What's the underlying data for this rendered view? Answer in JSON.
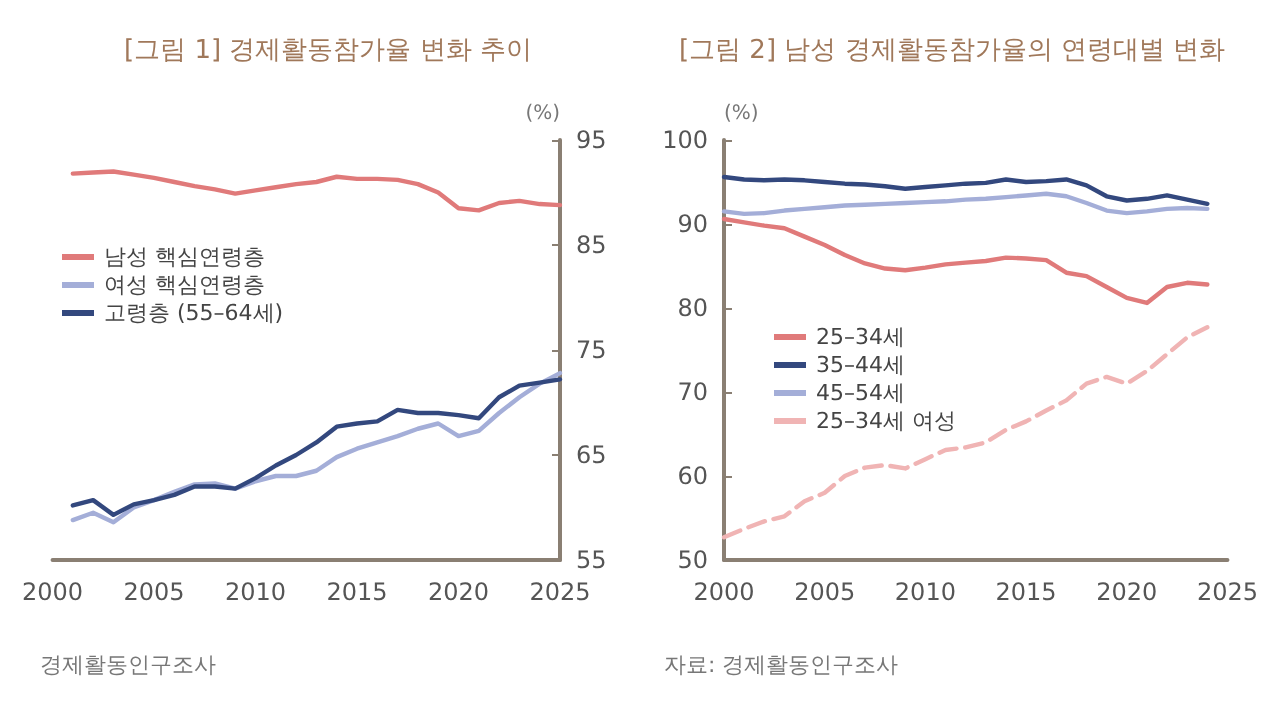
{
  "chart_data": [
    {
      "type": "line",
      "title": "[그림 1] 경제활동참가율 변화 추이",
      "y2label": "(%)",
      "annotations": [
        "경제활동인구조사"
      ],
      "x": [
        2001,
        2002,
        2003,
        2004,
        2005,
        2006,
        2007,
        2008,
        2009,
        2010,
        2011,
        2012,
        2013,
        2014,
        2015,
        2016,
        2017,
        2018,
        2019,
        2020,
        2021,
        2022,
        2023,
        2024,
        2025
      ],
      "series": [
        {
          "name": "남성 핵심연령층",
          "color": "#e07a7a",
          "axis": "y2",
          "values": [
            91.8,
            91.9,
            92.0,
            91.7,
            91.4,
            91.0,
            90.6,
            90.3,
            89.9,
            90.2,
            90.5,
            90.8,
            91.0,
            91.5,
            91.3,
            91.3,
            91.2,
            90.8,
            90.0,
            88.5,
            88.3,
            89.0,
            89.2,
            88.9,
            88.8
          ]
        },
        {
          "name": "여성 핵심연령층",
          "color": "#a4aed8",
          "axis": "y2",
          "values": [
            58.8,
            59.5,
            58.6,
            60.0,
            60.7,
            61.5,
            62.2,
            62.3,
            61.8,
            62.5,
            63.0,
            63.0,
            63.5,
            64.8,
            65.6,
            66.2,
            66.8,
            67.5,
            68.0,
            66.8,
            67.3,
            69.0,
            70.5,
            71.8,
            72.8
          ]
        },
        {
          "name": "고령층 (55–64세)",
          "color": "#33487e",
          "axis": "y2",
          "values": [
            60.2,
            60.7,
            59.3,
            60.3,
            60.7,
            61.2,
            62.0,
            62.0,
            61.8,
            62.8,
            64.0,
            65.0,
            66.2,
            67.7,
            68.0,
            68.2,
            69.3,
            69.0,
            69.0,
            68.8,
            68.5,
            70.5,
            71.6,
            71.9,
            72.2
          ]
        }
      ],
      "xlim": [
        2000,
        2025
      ],
      "xticks": [
        2000,
        2005,
        2010,
        2015,
        2020,
        2025
      ],
      "y2lim": [
        55,
        95
      ],
      "y2ticks": [
        55,
        65,
        75,
        85,
        95
      ],
      "legend": "left",
      "marker": "none",
      "grid": false
    },
    {
      "type": "line",
      "title": "[그림 2] 남성 경제활동참가율의 연령대별 변화",
      "ylabel": "(%)",
      "annotations": [
        "자료: 경제활동인구조사"
      ],
      "x": [
        2000,
        2001,
        2002,
        2003,
        2004,
        2005,
        2006,
        2007,
        2008,
        2009,
        2010,
        2011,
        2012,
        2013,
        2014,
        2015,
        2016,
        2017,
        2018,
        2019,
        2020,
        2021,
        2022,
        2023,
        2024
      ],
      "series": [
        {
          "name": "25–34세",
          "color": "#e07a7a",
          "values": [
            90.6,
            90.2,
            89.8,
            89.5,
            88.5,
            87.5,
            86.3,
            85.3,
            84.7,
            84.5,
            84.8,
            85.2,
            85.4,
            85.6,
            86.0,
            85.9,
            85.7,
            84.2,
            83.8,
            82.5,
            81.2,
            80.6,
            82.5,
            83.0,
            82.8
          ]
        },
        {
          "name": "35–44세",
          "color": "#33487e",
          "values": [
            95.6,
            95.3,
            95.2,
            95.3,
            95.2,
            95.0,
            94.8,
            94.7,
            94.5,
            94.2,
            94.4,
            94.6,
            94.8,
            94.9,
            95.3,
            95.0,
            95.1,
            95.3,
            94.6,
            93.3,
            92.8,
            93.0,
            93.4,
            92.9,
            92.4
          ]
        },
        {
          "name": "45–54세",
          "color": "#a4aed8",
          "values": [
            91.5,
            91.2,
            91.3,
            91.6,
            91.8,
            92.0,
            92.2,
            92.3,
            92.4,
            92.5,
            92.6,
            92.7,
            92.9,
            93.0,
            93.2,
            93.4,
            93.6,
            93.3,
            92.5,
            91.6,
            91.3,
            91.5,
            91.8,
            91.9,
            91.8
          ]
        },
        {
          "name": "25–34세 여성",
          "color": "#f0b4b4",
          "line_style": "dashed",
          "values": [
            52.7,
            53.7,
            54.6,
            55.2,
            57.0,
            58.0,
            60.0,
            61.0,
            61.3,
            60.9,
            62.0,
            63.1,
            63.4,
            64.0,
            65.5,
            66.5,
            67.8,
            69.0,
            71.0,
            71.8,
            71.0,
            72.5,
            74.5,
            76.5,
            77.7
          ]
        }
      ],
      "xlim": [
        2000,
        2025
      ],
      "xticks": [
        2000,
        2005,
        2010,
        2015,
        2020,
        2025
      ],
      "ylim": [
        50,
        100
      ],
      "yticks": [
        50,
        60,
        70,
        80,
        90,
        100
      ],
      "legend": "bottom left",
      "marker": "none",
      "grid": false
    }
  ]
}
